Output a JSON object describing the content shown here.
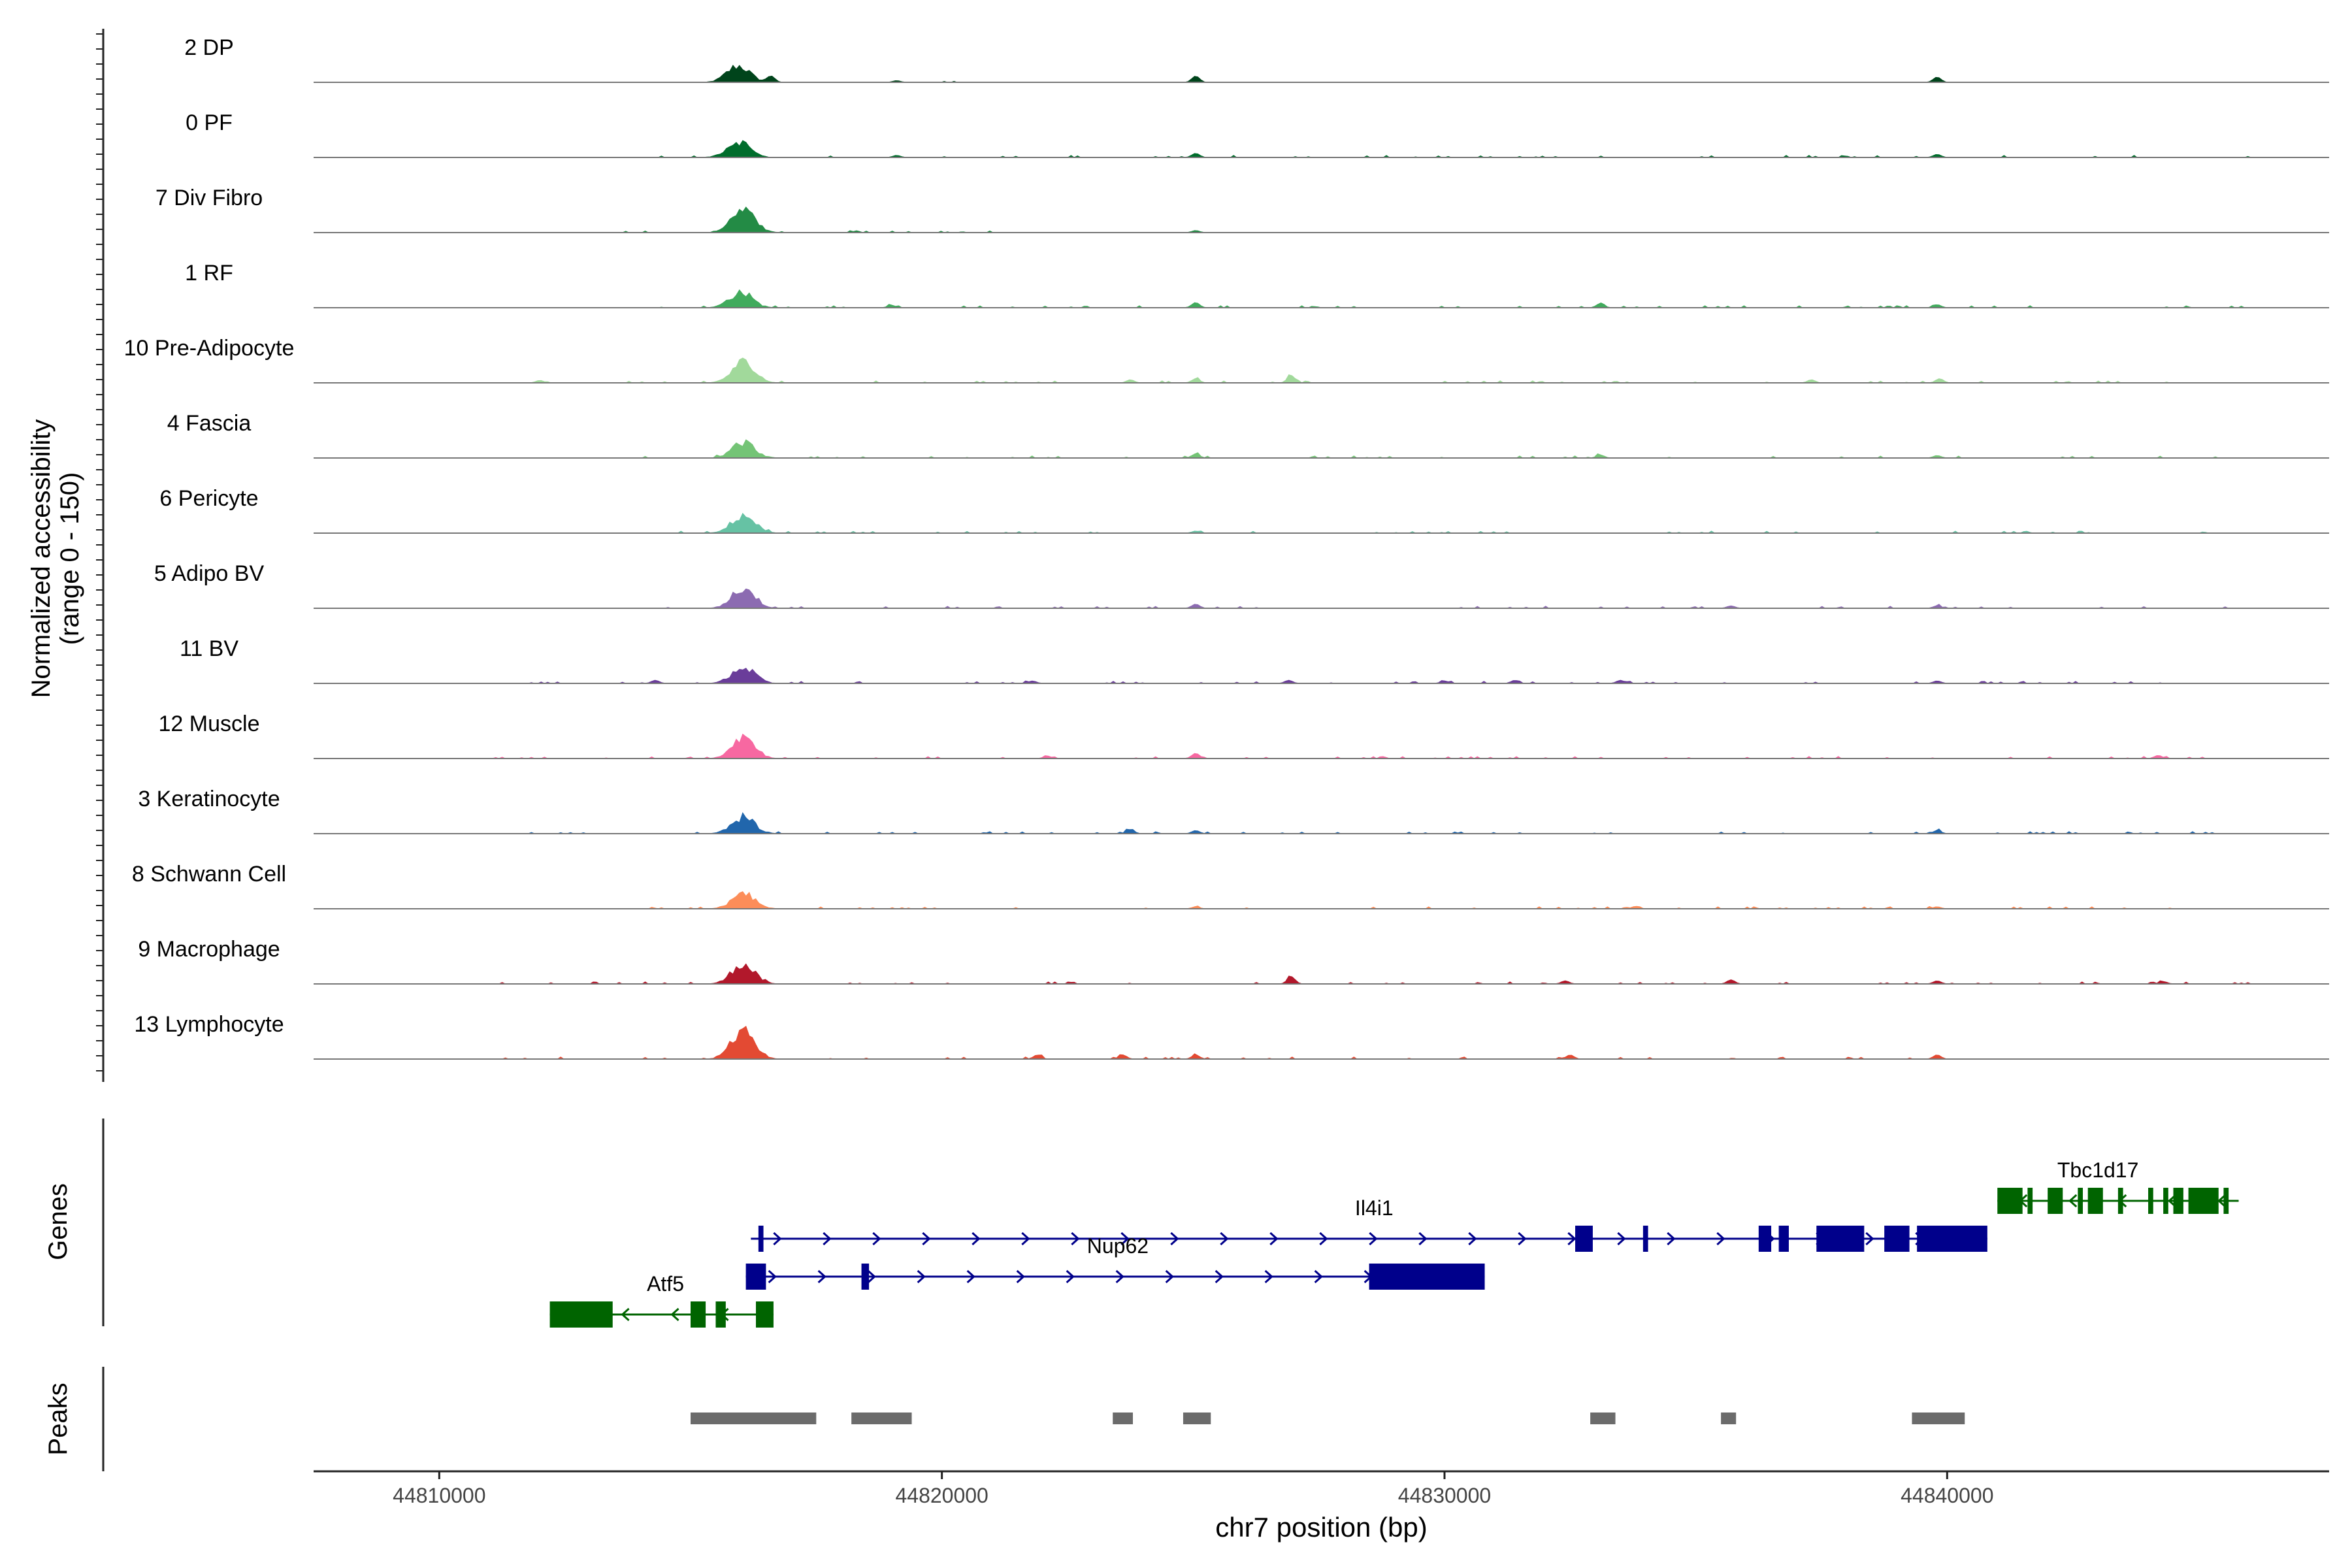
{
  "chart_data": {
    "type": "area",
    "title": "",
    "chromosome": "chr7",
    "xlabel": "chr7 position (bp)",
    "ylabel_line1": "Normalized accessibility",
    "ylabel_line2": "(range 0 - 150)",
    "y_range": [
      0,
      150
    ],
    "xlim": [
      44807500,
      44847600
    ],
    "x_ticks": [
      44810000,
      44820000,
      44830000,
      44840000
    ],
    "x_tick_labels": [
      "44810000",
      "44820000",
      "44830000",
      "44840000"
    ],
    "panel_labels": {
      "genes": "Genes",
      "peaks": "Peaks"
    },
    "tracks": [
      {
        "name": "2 DP",
        "color": "#00441b",
        "peaks": [
          [
            44815950,
            1.0
          ],
          [
            44816600,
            0.3
          ],
          [
            44819100,
            0.08
          ],
          [
            44825050,
            0.3
          ],
          [
            44839800,
            0.25
          ]
        ],
        "noise": [
          [
            44818000,
            44820500
          ]
        ]
      },
      {
        "name": "0 PF",
        "color": "#006d2c",
        "peaks": [
          [
            44815950,
            1.0
          ],
          [
            44819100,
            0.1
          ],
          [
            44825050,
            0.2
          ],
          [
            44839800,
            0.15
          ]
        ],
        "noise": [
          [
            44814000,
            44846000
          ]
        ]
      },
      {
        "name": "7 Div Fibro",
        "color": "#238b45",
        "peaks": [
          [
            44816050,
            1.35
          ],
          [
            44825050,
            0.1
          ]
        ],
        "noise": [
          [
            44813500,
            44821000
          ]
        ]
      },
      {
        "name": "1 RF",
        "color": "#41ab5d",
        "peaks": [
          [
            44816000,
            0.95
          ],
          [
            44819000,
            0.12
          ],
          [
            44825050,
            0.25
          ],
          [
            44833100,
            0.2
          ],
          [
            44839800,
            0.15
          ]
        ],
        "noise": [
          [
            44814000,
            44846000
          ]
        ]
      },
      {
        "name": "10 Pre-Adipocyte",
        "color": "#a1d99b",
        "peaks": [
          [
            44816050,
            1.25
          ],
          [
            44812000,
            0.12
          ],
          [
            44823750,
            0.15
          ],
          [
            44825050,
            0.2
          ],
          [
            44826950,
            0.35
          ],
          [
            44837300,
            0.15
          ],
          [
            44839850,
            0.2
          ]
        ],
        "noise": [
          [
            44811500,
            44846000
          ]
        ]
      },
      {
        "name": "4 Fascia",
        "color": "#74c476",
        "peaks": [
          [
            44816050,
            0.95
          ],
          [
            44825050,
            0.2
          ],
          [
            44833100,
            0.15
          ],
          [
            44839800,
            0.12
          ]
        ],
        "noise": [
          [
            44814000,
            44846000
          ]
        ]
      },
      {
        "name": "6 Pericyte",
        "color": "#66c2a4",
        "peaks": [
          [
            44816050,
            1.1
          ],
          [
            44825050,
            0.1
          ]
        ],
        "noise": [
          [
            44814000,
            44846000
          ]
        ]
      },
      {
        "name": "5 Adipo BV",
        "color": "#8c6bb1",
        "peaks": [
          [
            44816050,
            1.25
          ],
          [
            44825050,
            0.2
          ],
          [
            44835700,
            0.12
          ],
          [
            44839800,
            0.12
          ]
        ],
        "noise": [
          [
            44814000,
            44846000
          ]
        ]
      },
      {
        "name": "11 BV",
        "color": "#6a3d9a",
        "peaks": [
          [
            44816050,
            1.05
          ],
          [
            44814300,
            0.15
          ],
          [
            44821800,
            0.12
          ],
          [
            44826900,
            0.15
          ],
          [
            44830000,
            0.12
          ],
          [
            44831400,
            0.15
          ],
          [
            44833500,
            0.15
          ],
          [
            44839800,
            0.12
          ]
        ],
        "noise": [
          [
            44811500,
            44846000
          ]
        ]
      },
      {
        "name": "12 Muscle",
        "color": "#f768a1",
        "peaks": [
          [
            44816050,
            1.35
          ],
          [
            44822100,
            0.12
          ],
          [
            44825050,
            0.25
          ],
          [
            44844200,
            0.15
          ]
        ],
        "noise": [
          [
            44811000,
            44846000
          ]
        ]
      },
      {
        "name": "3 Keratinocyte",
        "color": "#2166ac",
        "peaks": [
          [
            44816050,
            1.0
          ],
          [
            44823750,
            0.2
          ],
          [
            44825050,
            0.15
          ],
          [
            44839800,
            0.15
          ]
        ],
        "noise": [
          [
            44811000,
            44846000
          ]
        ]
      },
      {
        "name": "8 Schwann Cell",
        "color": "#fc8d59",
        "peaks": [
          [
            44816050,
            0.9
          ],
          [
            44825050,
            0.1
          ],
          [
            44833800,
            0.12
          ],
          [
            44839800,
            0.1
          ]
        ],
        "noise": [
          [
            44814000,
            44846000
          ]
        ]
      },
      {
        "name": "9 Macrophage",
        "color": "#b2182b",
        "peaks": [
          [
            44816050,
            1.25
          ],
          [
            44826950,
            0.35
          ],
          [
            44832400,
            0.15
          ],
          [
            44835700,
            0.2
          ],
          [
            44839800,
            0.15
          ],
          [
            44844300,
            0.12
          ]
        ],
        "noise": [
          [
            44811000,
            44846000
          ]
        ]
      },
      {
        "name": "13 Lymphocyte",
        "color": "#e34a33",
        "peaks": [
          [
            44816050,
            1.75
          ],
          [
            44821900,
            0.2
          ],
          [
            44823600,
            0.2
          ],
          [
            44825050,
            0.2
          ],
          [
            44832500,
            0.2
          ],
          [
            44839800,
            0.2
          ]
        ],
        "noise": [
          [
            44811000,
            44841000
          ]
        ]
      }
    ],
    "genes": [
      {
        "name": "Tbc1d17",
        "strand": "-",
        "color": "#006400",
        "start": 44841000,
        "end": 44845800,
        "row": 0,
        "exons": [
          [
            44841000,
            44841500
          ],
          [
            44841600,
            44841700
          ],
          [
            44842000,
            44842300
          ],
          [
            44842600,
            44842700
          ],
          [
            44842800,
            44843100
          ],
          [
            44843400,
            44843500
          ],
          [
            44844000,
            44844100
          ],
          [
            44844300,
            44844400
          ],
          [
            44844500,
            44844700
          ],
          [
            44844800,
            44845400
          ],
          [
            44845500,
            44845600
          ]
        ]
      },
      {
        "name": "Il4i1",
        "strand": "+",
        "color": "#00008b",
        "start": 44816200,
        "end": 44840800,
        "row": 1,
        "exons": [
          [
            44816350,
            44816450
          ],
          [
            44832600,
            44832950
          ],
          [
            44833950,
            44834050
          ],
          [
            44836250,
            44836500
          ],
          [
            44836650,
            44836850
          ],
          [
            44837400,
            44838350
          ],
          [
            44838750,
            44839250
          ],
          [
            44839400,
            44840800
          ]
        ]
      },
      {
        "name": "Nup62",
        "strand": "+",
        "color": "#00008b",
        "start": 44816100,
        "end": 44830800,
        "row": 2,
        "exons": [
          [
            44816100,
            44816500
          ],
          [
            44818400,
            44818550
          ],
          [
            44828500,
            44830800
          ]
        ]
      },
      {
        "name": "Atf5",
        "strand": "-",
        "color": "#006400",
        "start": 44812200,
        "end": 44816650,
        "row": 3,
        "exons": [
          [
            44812200,
            44813450
          ],
          [
            44815000,
            44815300
          ],
          [
            44815500,
            44815700
          ],
          [
            44816300,
            44816650
          ]
        ]
      }
    ],
    "peaks": [
      [
        44815000,
        44817500
      ],
      [
        44818200,
        44819400
      ],
      [
        44823400,
        44823800
      ],
      [
        44824800,
        44825350
      ],
      [
        44832900,
        44833400
      ],
      [
        44835500,
        44835800
      ],
      [
        44839300,
        44840350
      ]
    ]
  }
}
